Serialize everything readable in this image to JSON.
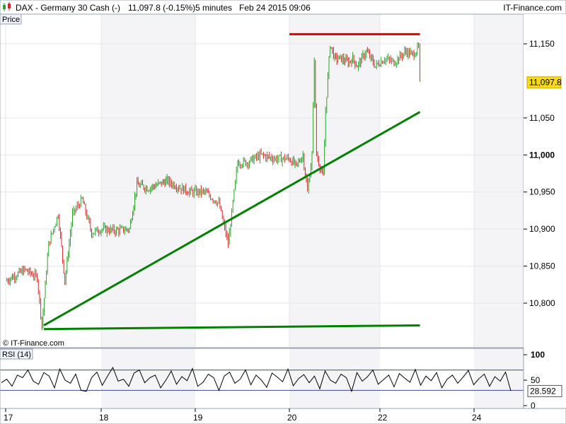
{
  "header": {
    "title": "DAX - Germany 30 Cash (-)",
    "last": "11,097.8 (-0.15%)",
    "interval": "5 minutes",
    "datetime": "Feb 24 2015 09:06",
    "source": "IT-Finance.com"
  },
  "price_panel_label": "Price",
  "watermark": "© IT-Finance.com",
  "rsi_panel_label": "RSI (14)",
  "chart_data": [
    {
      "type": "candlestick",
      "title": "DAX - Germany 30 Cash (-)",
      "x_ticks": [
        "17",
        "18",
        "19",
        "20",
        "22",
        "24"
      ],
      "y_ticks": [
        "11,150",
        "11,050",
        "11,000",
        "10,950",
        "10,900",
        "10,850",
        "10,800"
      ],
      "ylim": [
        10750,
        11175
      ],
      "last_value_label": "11,097.8",
      "grid": true,
      "series_path_approx": [
        [
          17.0,
          10830
        ],
        [
          17.2,
          10845
        ],
        [
          17.33,
          10835
        ],
        [
          17.38,
          10770
        ],
        [
          17.45,
          10880
        ],
        [
          17.55,
          10920
        ],
        [
          17.62,
          10830
        ],
        [
          17.7,
          10920
        ],
        [
          17.8,
          10940
        ],
        [
          17.9,
          10895
        ],
        [
          18.0,
          10900
        ],
        [
          18.15,
          10898
        ],
        [
          18.3,
          10900
        ],
        [
          18.38,
          10960
        ],
        [
          18.5,
          10955
        ],
        [
          18.7,
          10965
        ],
        [
          18.85,
          10955
        ],
        [
          18.95,
          10950
        ],
        [
          19.1,
          10950
        ],
        [
          19.25,
          10935
        ],
        [
          19.35,
          10880
        ],
        [
          19.45,
          10990
        ],
        [
          19.55,
          10990
        ],
        [
          19.7,
          11000
        ],
        [
          19.85,
          10995
        ],
        [
          20.0,
          10995
        ],
        [
          20.15,
          10985
        ],
        [
          20.3,
          11000
        ],
        [
          20.4,
          10950
        ],
        [
          20.5,
          11000
        ],
        [
          20.55,
          11130
        ],
        [
          20.6,
          11000
        ],
        [
          20.75,
          10970
        ],
        [
          20.8,
          11060
        ],
        [
          20.9,
          11150
        ],
        [
          21.0,
          11130
        ],
        [
          21.15,
          11130
        ],
        [
          21.3,
          11125
        ],
        [
          21.4,
          11130
        ],
        [
          21.5,
          11120
        ],
        [
          21.7,
          11140
        ],
        [
          21.9,
          11120
        ],
        [
          22.1,
          11130
        ],
        [
          22.3,
          11125
        ],
        [
          22.55,
          11140
        ],
        [
          22.7,
          11135
        ],
        [
          22.82,
          11145
        ],
        [
          22.85,
          11098
        ]
      ],
      "trendlines": [
        {
          "color": "#e00000",
          "from": [
            20.0,
            11163
          ],
          "to": [
            22.85,
            11163
          ]
        },
        {
          "color": "#008000",
          "from": [
            17.4,
            10770
          ],
          "to": [
            22.85,
            11058
          ]
        },
        {
          "color": "#008000",
          "from": [
            17.4,
            10765
          ],
          "to": [
            22.85,
            10770
          ]
        }
      ],
      "colors": {
        "up": "#2ca02c",
        "down": "#d62728",
        "resistance": "#e00000",
        "support": "#008000"
      }
    },
    {
      "type": "line",
      "title": "RSI (14)",
      "y_ticks": [
        "100",
        "50",
        "0"
      ],
      "ylim": [
        0,
        100
      ],
      "levels": [
        70,
        30
      ],
      "last_value_label": "28.592",
      "values": [
        45,
        52,
        38,
        60,
        55,
        70,
        48,
        42,
        65,
        58,
        35,
        72,
        50,
        44,
        62,
        30,
        28,
        55,
        66,
        40,
        58,
        75,
        48,
        52,
        38,
        64,
        70,
        45,
        55,
        60,
        35,
        50,
        68,
        42,
        57,
        49,
        73,
        38,
        46,
        62,
        55,
        30,
        58,
        66,
        44,
        52,
        70,
        41,
        60,
        50,
        36,
        64,
        56,
        47,
        72,
        39,
        53,
        61,
        45,
        58,
        33,
        68,
        50,
        44,
        62,
        55,
        28,
        65,
        48,
        57,
        70,
        42,
        51,
        60,
        37,
        63,
        54,
        46,
        71,
        40,
        58,
        49,
        65,
        35,
        52,
        60,
        44,
        56,
        69,
        41,
        53,
        62,
        38,
        57,
        48,
        66,
        29
      ]
    }
  ]
}
